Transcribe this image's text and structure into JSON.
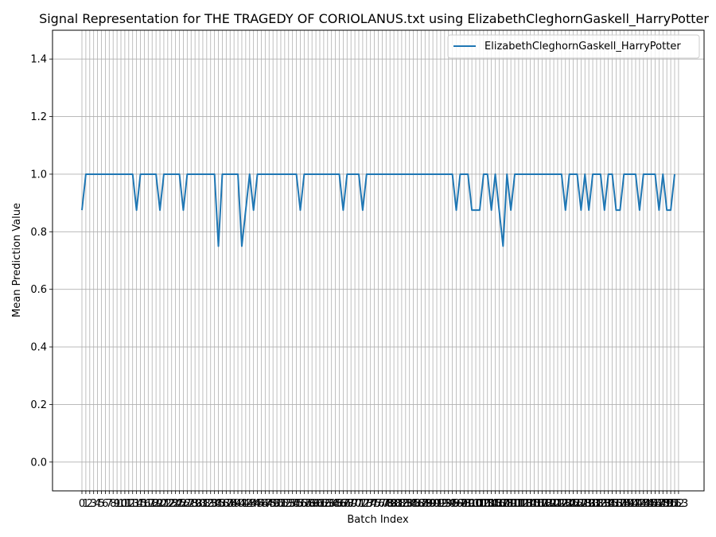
{
  "chart_data": {
    "type": "line",
    "title": "Signal Representation for THE TRAGEDY OF CORIOLANUS.txt using ElizabethCleghornGaskell_HarryPotter",
    "xlabel": "Batch Index",
    "ylabel": "Mean Prediction Value",
    "ylim": [
      -0.1,
      1.5
    ],
    "y_ticks": [
      0.0,
      0.2,
      0.4,
      0.6,
      0.8,
      1.0,
      1.2,
      1.4
    ],
    "x_ticks": [
      0,
      1,
      2,
      3,
      4,
      5,
      6,
      7,
      8,
      9,
      10,
      11,
      12,
      13,
      14,
      15,
      16,
      17,
      18,
      19,
      20,
      21,
      22,
      23,
      24,
      25,
      26,
      27,
      28,
      29,
      30,
      31,
      32,
      33,
      34,
      35,
      36,
      37,
      38,
      39,
      40,
      41,
      42,
      43,
      44,
      45,
      46,
      47,
      48,
      49,
      50,
      51,
      52,
      53,
      54,
      55,
      56,
      57,
      58,
      59,
      60,
      61,
      62,
      63,
      64,
      65,
      66,
      67,
      68,
      69,
      70,
      71,
      72,
      73,
      74,
      75,
      76,
      77,
      78,
      79,
      80,
      81,
      82,
      83,
      84,
      85,
      86,
      87,
      88,
      89,
      90,
      91,
      92,
      93,
      94,
      95,
      96,
      97,
      98,
      99,
      100,
      101,
      102,
      103,
      104,
      105,
      106,
      107,
      108,
      109,
      110,
      111,
      112,
      113,
      114,
      115,
      116,
      117,
      118,
      119,
      120,
      121,
      122,
      123,
      124,
      125,
      126,
      127,
      128,
      129,
      130,
      131,
      132,
      133,
      134,
      135,
      136,
      137,
      138,
      139,
      140,
      141,
      142,
      143,
      144,
      145,
      146,
      147,
      148,
      149,
      150,
      151,
      152,
      153
    ],
    "grid": true,
    "legend_position": "top-right",
    "series": [
      {
        "name": "ElizabethCleghornGaskell_HarryPotter",
        "color": "#1f77b4",
        "values": [
          0.875,
          1,
          1,
          1,
          1,
          1,
          1,
          1,
          1,
          1,
          1,
          1,
          1,
          1,
          0.875,
          1,
          1,
          1,
          1,
          1,
          0.875,
          1,
          1,
          1,
          1,
          1,
          0.875,
          1,
          1,
          1,
          1,
          1,
          1,
          1,
          1,
          0.75,
          1,
          1,
          1,
          1,
          1,
          0.75,
          0.875,
          1,
          0.875,
          1,
          1,
          1,
          1,
          1,
          1,
          1,
          1,
          1,
          1,
          1,
          0.875,
          1,
          1,
          1,
          1,
          1,
          1,
          1,
          1,
          1,
          1,
          0.875,
          1,
          1,
          1,
          1,
          0.875,
          1,
          1,
          1,
          1,
          1,
          1,
          1,
          1,
          1,
          1,
          1,
          1,
          1,
          1,
          1,
          1,
          1,
          1,
          1,
          1,
          1,
          1,
          1,
          0.875,
          1,
          1,
          1,
          0.875,
          0.875,
          0.875,
          1,
          1,
          0.875,
          1,
          0.875,
          0.75,
          1,
          0.875,
          1,
          1,
          1,
          1,
          1,
          1,
          1,
          1,
          1,
          1,
          1,
          1,
          1,
          0.875,
          1,
          1,
          1,
          0.875,
          1,
          0.875,
          1,
          1,
          1,
          0.875,
          1,
          1,
          0.875,
          0.875,
          1,
          1,
          1,
          1,
          0.875,
          1,
          1,
          1,
          1,
          0.875,
          1,
          0.875,
          0.875,
          1
        ]
      }
    ]
  }
}
